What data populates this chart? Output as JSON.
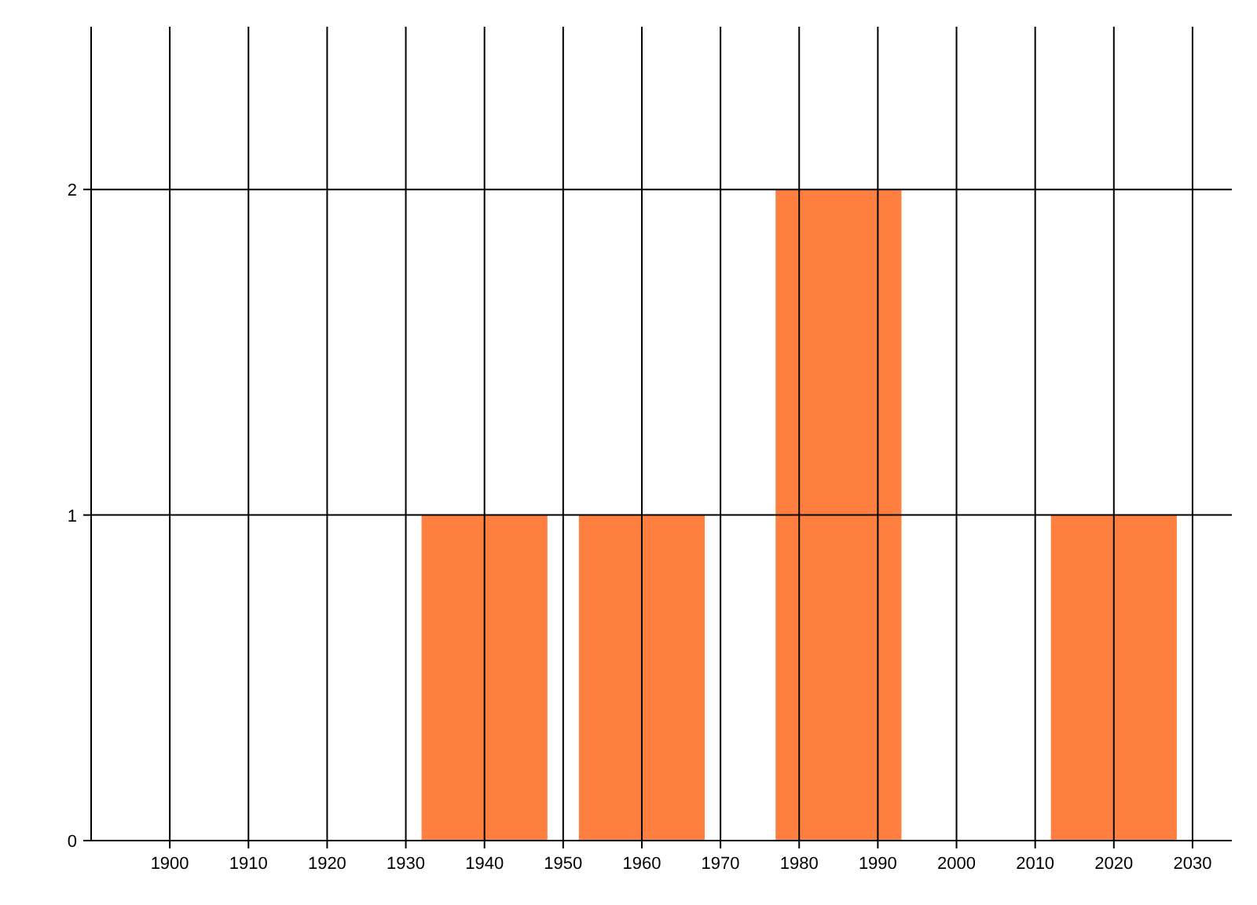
{
  "chart_data": {
    "type": "bar",
    "x": [
      1940,
      1960,
      1985,
      2020
    ],
    "values": [
      1,
      1,
      2,
      1
    ],
    "color": "#ff7f41",
    "xlim": [
      1890,
      2035
    ],
    "xticks": [
      1900,
      1910,
      1920,
      1930,
      1940,
      1950,
      1960,
      1970,
      1980,
      1990,
      2000,
      2010,
      2020,
      2030
    ],
    "ylim": [
      0,
      2.5
    ],
    "yticks": [
      0,
      1,
      2
    ],
    "grid": true
  }
}
